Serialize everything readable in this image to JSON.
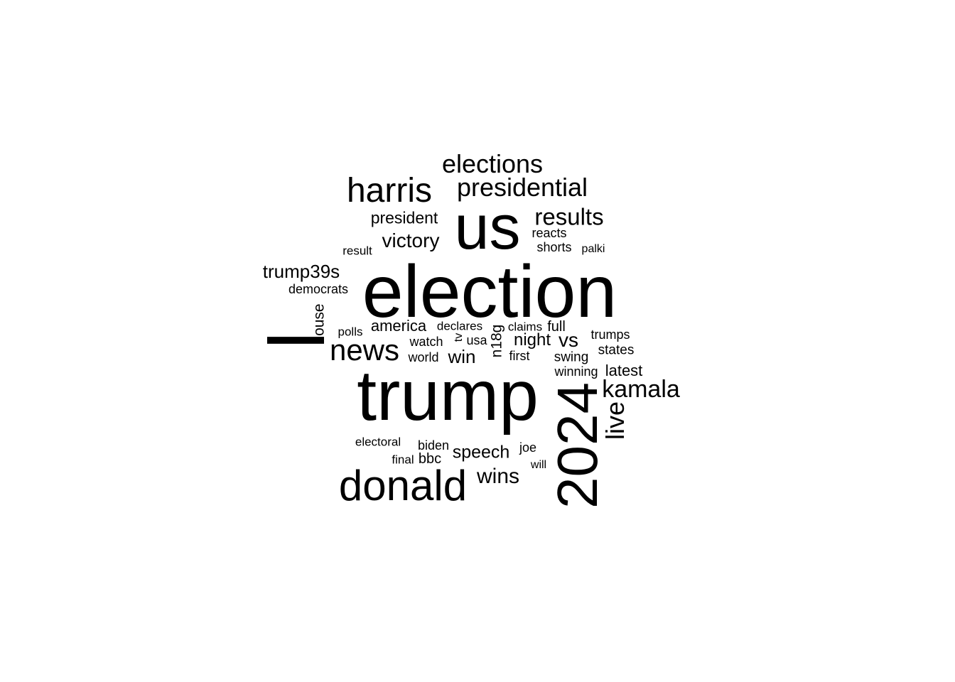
{
  "words": [
    {
      "text": "election",
      "key": "election"
    },
    {
      "text": "trump",
      "key": "trump"
    },
    {
      "text": "us",
      "key": "us"
    },
    {
      "text": "l",
      "key": "l"
    },
    {
      "text": "2024",
      "key": "2024"
    },
    {
      "text": "donald",
      "key": "donald"
    },
    {
      "text": "harris",
      "key": "harris"
    },
    {
      "text": "news",
      "key": "news"
    },
    {
      "text": "elections",
      "key": "elections"
    },
    {
      "text": "presidential",
      "key": "presidential"
    },
    {
      "text": "results",
      "key": "results"
    },
    {
      "text": "kamala",
      "key": "kamala"
    },
    {
      "text": "live",
      "key": "live"
    },
    {
      "text": "victory",
      "key": "victory"
    },
    {
      "text": "trump39s",
      "key": "trump39s"
    },
    {
      "text": "president",
      "key": "president"
    },
    {
      "text": "wins",
      "key": "wins"
    },
    {
      "text": "speech",
      "key": "speech"
    },
    {
      "text": "win",
      "key": "win"
    },
    {
      "text": "vs",
      "key": "vs"
    },
    {
      "text": "night",
      "key": "night"
    },
    {
      "text": "america",
      "key": "america"
    },
    {
      "text": "latest",
      "key": "latest"
    },
    {
      "text": "house",
      "key": "house"
    },
    {
      "text": "n18g",
      "key": "n18g"
    },
    {
      "text": "reacts",
      "key": "reacts"
    },
    {
      "text": "shorts",
      "key": "shorts"
    },
    {
      "text": "palki",
      "key": "palki"
    },
    {
      "text": "result",
      "key": "result"
    },
    {
      "text": "democrats",
      "key": "democrats"
    },
    {
      "text": "polls",
      "key": "polls"
    },
    {
      "text": "declares",
      "key": "declares"
    },
    {
      "text": "claims",
      "key": "claims"
    },
    {
      "text": "full",
      "key": "full"
    },
    {
      "text": "trumps",
      "key": "trumps"
    },
    {
      "text": "watch",
      "key": "watch"
    },
    {
      "text": "tv",
      "key": "tv"
    },
    {
      "text": "usa",
      "key": "usa"
    },
    {
      "text": "world",
      "key": "world"
    },
    {
      "text": "first",
      "key": "first"
    },
    {
      "text": "swing",
      "key": "swing"
    },
    {
      "text": "states",
      "key": "states"
    },
    {
      "text": "winning",
      "key": "winning"
    },
    {
      "text": "electoral",
      "key": "electoral"
    },
    {
      "text": "biden",
      "key": "biden"
    },
    {
      "text": "bbc",
      "key": "bbc"
    },
    {
      "text": "final",
      "key": "final"
    },
    {
      "text": "joe",
      "key": "joe"
    },
    {
      "text": "will",
      "key": "will"
    }
  ]
}
